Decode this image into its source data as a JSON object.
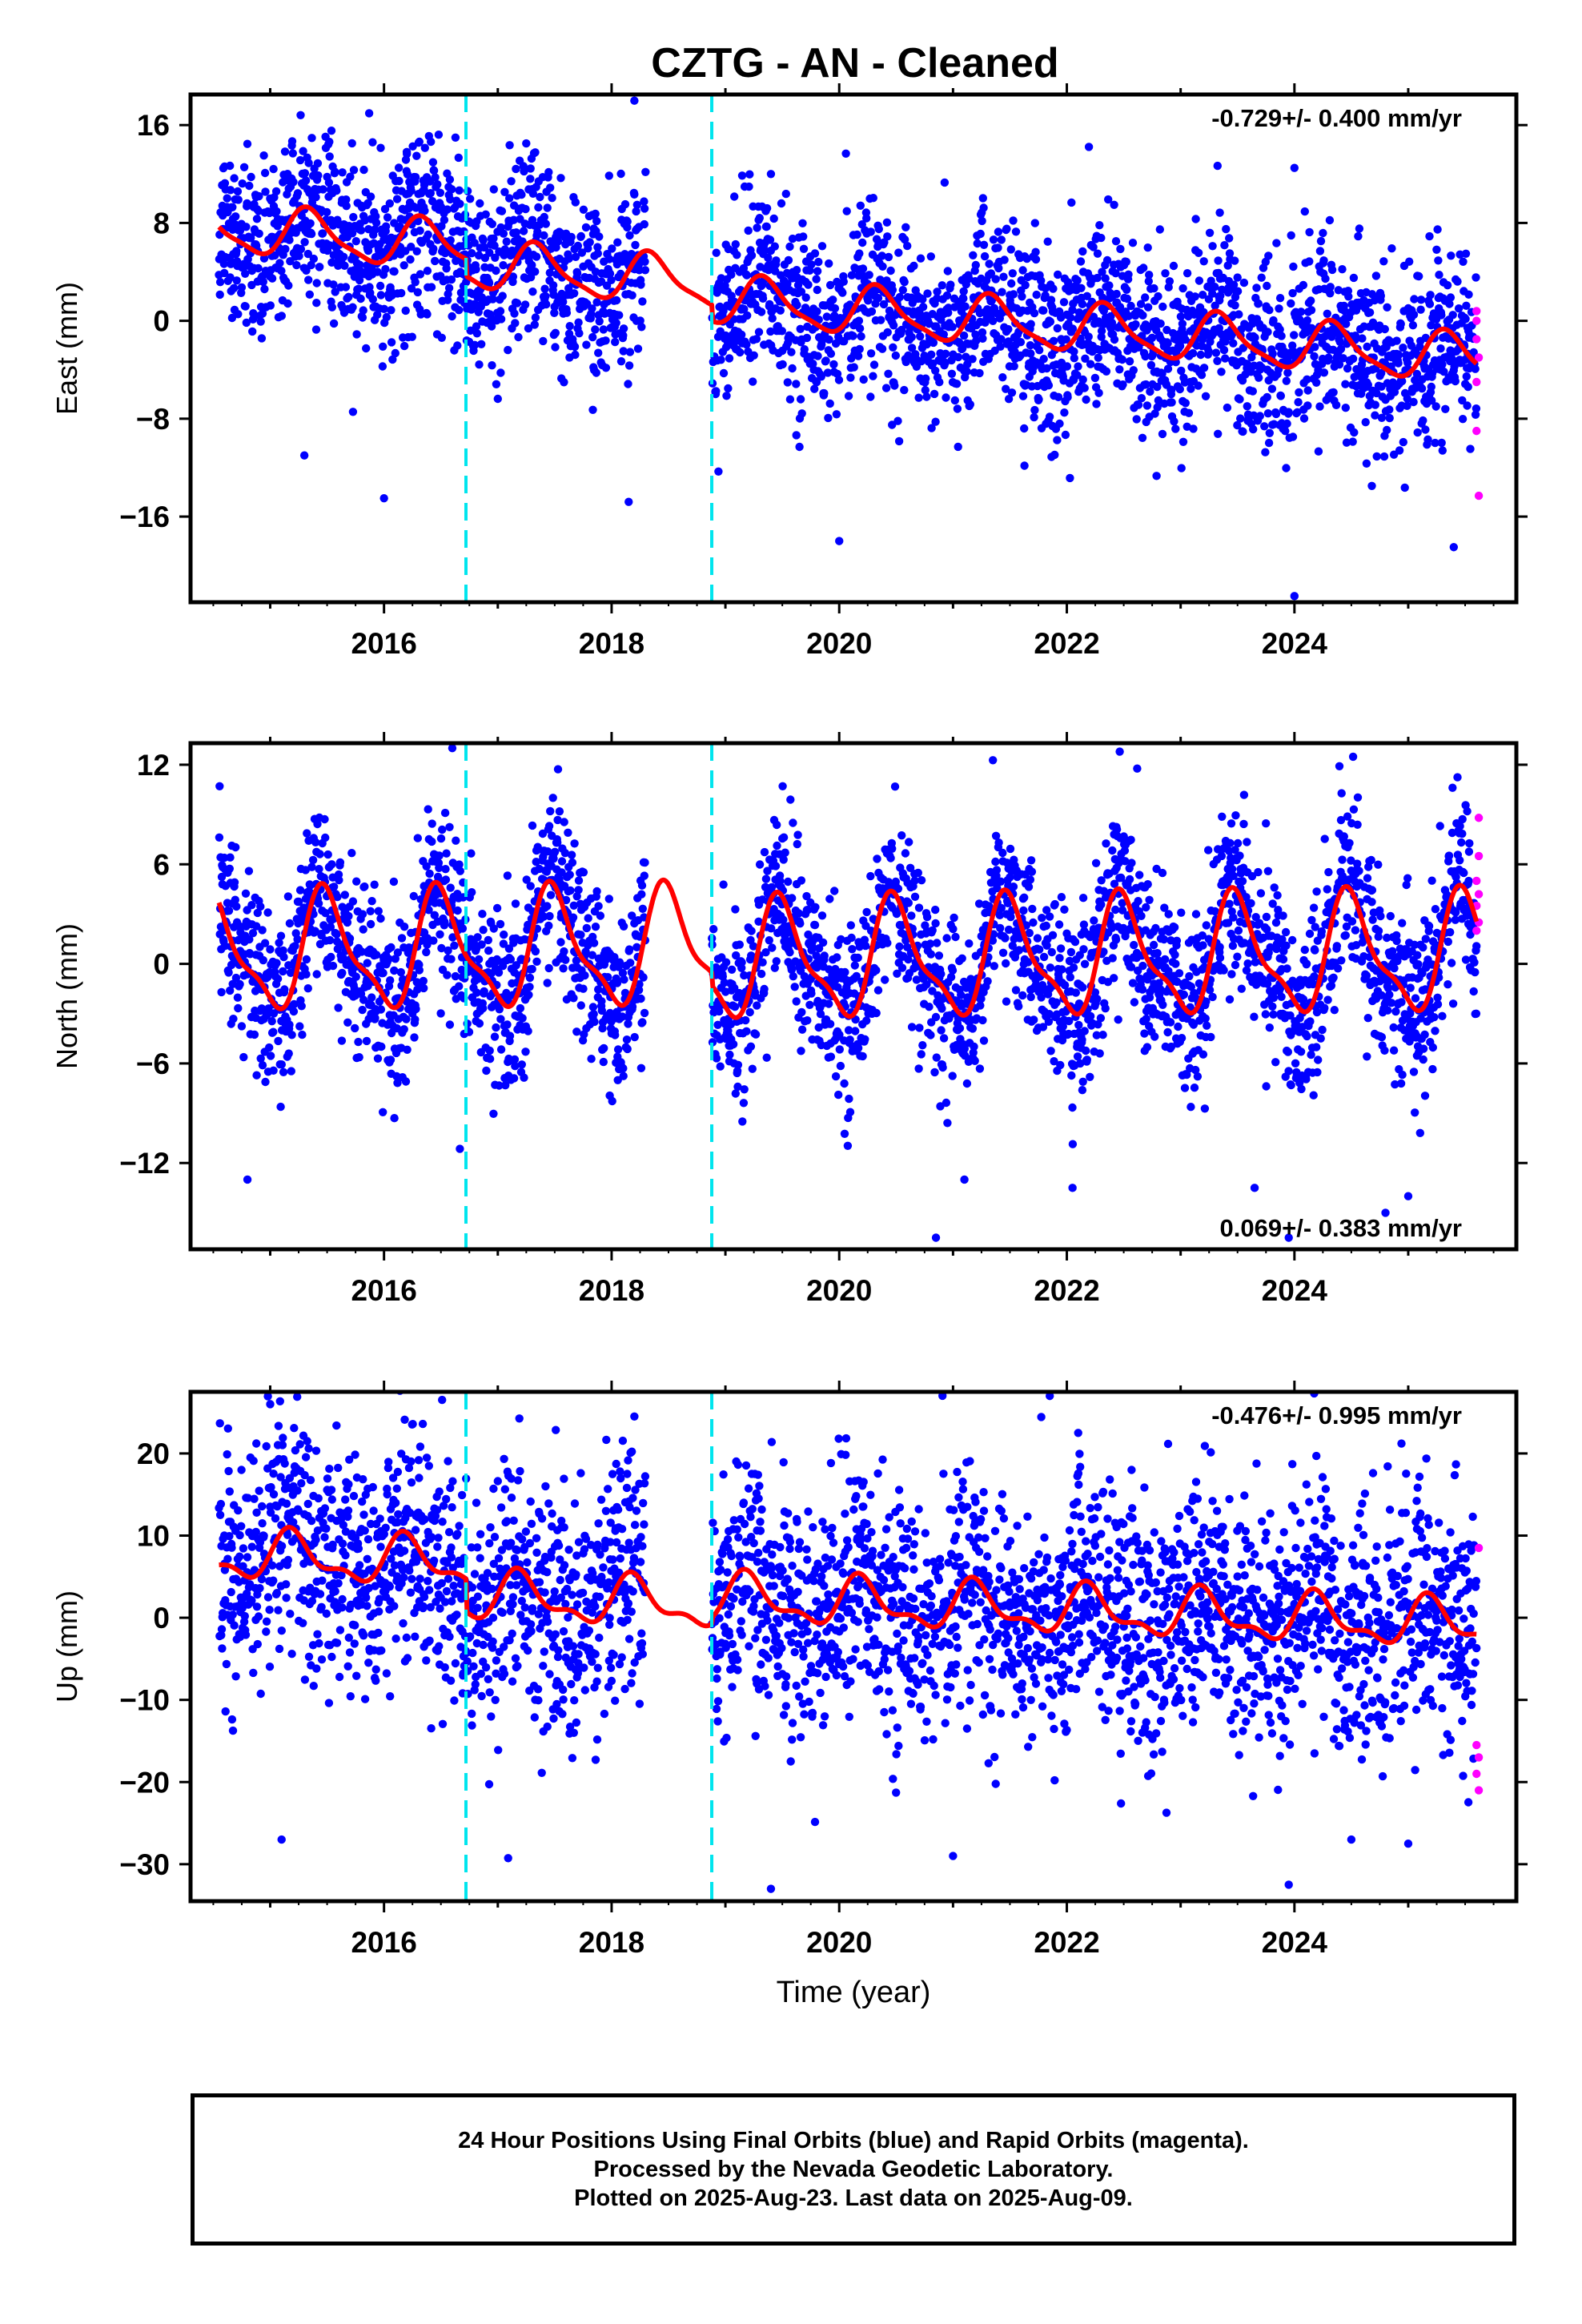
{
  "title": "CZTG  - AN - Cleaned",
  "chart_data": [
    {
      "type": "scatter",
      "component": "east",
      "ylabel": "East (mm)",
      "xlabel": "",
      "rate_label": "-0.729+/- 0.400 mm/yr",
      "rate_position": "top-right",
      "xlim": [
        2014.3,
        2025.95
      ],
      "ylim": [
        -23,
        18.5
      ],
      "yticks": [
        16,
        8,
        0,
        -8,
        -16
      ],
      "ytick_labels": [
        "16",
        "8",
        "0",
        "−8",
        "−16"
      ],
      "xticks": [
        2016,
        2018,
        2020,
        2022,
        2024
      ],
      "xtick_labels": [
        "2016",
        "2018",
        "2020",
        "2022",
        "2024"
      ],
      "breaks": [
        2016.72,
        2018.88
      ],
      "data_span": [
        2014.55,
        2025.6
      ],
      "data_gap": [
        2018.3,
        2018.88
      ],
      "model": {
        "segments": [
          {
            "x0": 2014.5,
            "x1": 2016.72,
            "offset": 3.6,
            "trend": -0.729,
            "amp1": 1.9,
            "phase1": 2015.35,
            "amp2": 0.5,
            "phase2": 2015.28
          },
          {
            "x0": 2016.72,
            "x1": 2018.88,
            "offset": 2.2,
            "trend": -0.729,
            "amp1": 1.9,
            "phase1": 2015.35,
            "amp2": 0.5,
            "phase2": 2015.28
          },
          {
            "x0": 2018.88,
            "x1": 2025.6,
            "offset": 0.9,
            "trend": -0.729,
            "amp1": 1.9,
            "phase1": 2015.35,
            "amp2": 0.5,
            "phase2": 2015.28
          }
        ]
      },
      "scatter_sd": 3.6,
      "outliers": [
        [
          2015.3,
          -11.0
        ],
        [
          2016.0,
          -14.5
        ],
        [
          2018.15,
          -14.8
        ],
        [
          2018.2,
          18.0
        ],
        [
          2020.0,
          -18.0
        ],
        [
          2024.0,
          12.5
        ],
        [
          2024.0,
          -22.5
        ],
        [
          2025.4,
          -18.5
        ],
        [
          2019.4,
          12.0
        ],
        [
          2016.2,
          13.8
        ]
      ],
      "rapid_points": [
        [
          2025.6,
          0.8
        ],
        [
          2025.6,
          0.0
        ],
        [
          2025.6,
          -1.5
        ],
        [
          2025.62,
          -3.0
        ],
        [
          2025.6,
          -5.0
        ],
        [
          2025.6,
          -9.0
        ],
        [
          2025.62,
          -14.3
        ]
      ]
    },
    {
      "type": "scatter",
      "component": "north",
      "ylabel": "North (mm)",
      "xlabel": "",
      "rate_label": "0.069+/- 0.383 mm/yr",
      "rate_position": "bottom-right",
      "xlim": [
        2014.3,
        2025.95
      ],
      "ylim": [
        -17.2,
        13.3
      ],
      "yticks": [
        12,
        6,
        0,
        -6,
        -12
      ],
      "ytick_labels": [
        "12",
        "6",
        "0",
        "−6",
        "−12"
      ],
      "xticks": [
        2016,
        2018,
        2020,
        2022,
        2024
      ],
      "xtick_labels": [
        "2016",
        "2018",
        "2020",
        "2022",
        "2024"
      ],
      "breaks": [
        2016.72,
        2018.88
      ],
      "data_span": [
        2014.55,
        2025.6
      ],
      "data_gap": [
        2018.3,
        2018.88
      ],
      "model": {
        "segments": [
          {
            "x0": 2014.5,
            "x1": 2016.72,
            "offset": 1.0,
            "trend": 0.069,
            "amp1": 3.3,
            "phase1": 2015.5,
            "amp2": 1.1,
            "phase2": 2015.42
          },
          {
            "x0": 2016.72,
            "x1": 2018.88,
            "offset": 1.0,
            "trend": 0.069,
            "amp1": 3.3,
            "phase1": 2015.5,
            "amp2": 1.1,
            "phase2": 2015.42
          },
          {
            "x0": 2018.88,
            "x1": 2025.6,
            "offset": 0.2,
            "trend": 0.069,
            "amp1": 3.3,
            "phase1": 2015.5,
            "amp2": 1.1,
            "phase2": 2015.42
          }
        ]
      },
      "scatter_sd": 2.6,
      "outliers": [
        [
          2014.8,
          -13.0
        ],
        [
          2016.6,
          13.0
        ],
        [
          2020.85,
          -16.5
        ],
        [
          2021.1,
          -13.0
        ],
        [
          2022.05,
          -13.5
        ],
        [
          2023.65,
          -13.5
        ],
        [
          2024.8,
          -15.0
        ],
        [
          2025.0,
          -14.0
        ],
        [
          2023.95,
          -16.5
        ]
      ],
      "rapid_points": [
        [
          2025.62,
          8.8
        ],
        [
          2025.62,
          6.5
        ],
        [
          2025.6,
          5.0
        ],
        [
          2025.62,
          4.2
        ],
        [
          2025.6,
          3.5
        ],
        [
          2025.62,
          2.5
        ],
        [
          2025.6,
          2.0
        ]
      ]
    },
    {
      "type": "scatter",
      "component": "up",
      "ylabel": "Up (mm)",
      "xlabel": "Time (year)",
      "rate_label": "-0.476+/- 0.995 mm/yr",
      "rate_position": "top-right",
      "xlim": [
        2014.3,
        2025.95
      ],
      "ylim": [
        -34.5,
        27.5
      ],
      "yticks": [
        20,
        10,
        0,
        -10,
        -20,
        -30
      ],
      "ytick_labels": [
        "20",
        "10",
        "0",
        "−10",
        "−20",
        "−30"
      ],
      "xticks": [
        2016,
        2018,
        2020,
        2022,
        2024
      ],
      "xtick_labels": [
        "2016",
        "2018",
        "2020",
        "2022",
        "2024"
      ],
      "breaks": [
        2016.72,
        2018.88
      ],
      "data_span": [
        2014.55,
        2025.6
      ],
      "data_gap": [
        2018.3,
        2018.88
      ],
      "model": {
        "segments": [
          {
            "x0": 2014.5,
            "x1": 2016.72,
            "offset": 5.0,
            "trend": -0.476,
            "amp1": 2.6,
            "phase1": 2015.2,
            "amp2": 1.2,
            "phase2": 2015.15
          },
          {
            "x0": 2016.72,
            "x1": 2018.88,
            "offset": 1.0,
            "trend": -0.476,
            "amp1": 2.6,
            "phase1": 2015.2,
            "amp2": 1.2,
            "phase2": 2015.15
          },
          {
            "x0": 2018.88,
            "x1": 2025.6,
            "offset": 1.8,
            "trend": -0.476,
            "amp1": 2.6,
            "phase1": 2015.2,
            "amp2": 1.2,
            "phase2": 2015.15
          }
        ]
      },
      "scatter_sd": 7.2,
      "outliers": [
        [
          2015.1,
          -27.0
        ],
        [
          2019.4,
          -33.0
        ],
        [
          2021.0,
          -29.0
        ],
        [
          2021.85,
          27.0
        ],
        [
          2023.95,
          -32.5
        ],
        [
          2018.2,
          24.5
        ],
        [
          2015.0,
          26.0
        ],
        [
          2024.5,
          -27.0
        ],
        [
          2025.0,
          -27.5
        ],
        [
          2022.1,
          22.5
        ]
      ],
      "rapid_points": [
        [
          2025.62,
          8.5
        ],
        [
          2025.6,
          -15.5
        ],
        [
          2025.62,
          -17.0
        ],
        [
          2025.6,
          -19.0
        ],
        [
          2025.62,
          -21.0
        ]
      ]
    }
  ],
  "footer": {
    "line1": "24 Hour Positions Using Final Orbits (blue) and Rapid Orbits (magenta).",
    "line2": "Processed by the Nevada Geodetic Laboratory.",
    "line3": "Plotted on 2025-Aug-23. Last data on 2025-Aug-09."
  },
  "colors": {
    "final_points": "#0000ff",
    "rapid_points": "#ff00ff",
    "model_line": "#ff0000",
    "break_lines": "#00e5ee",
    "axes": "#000000"
  }
}
